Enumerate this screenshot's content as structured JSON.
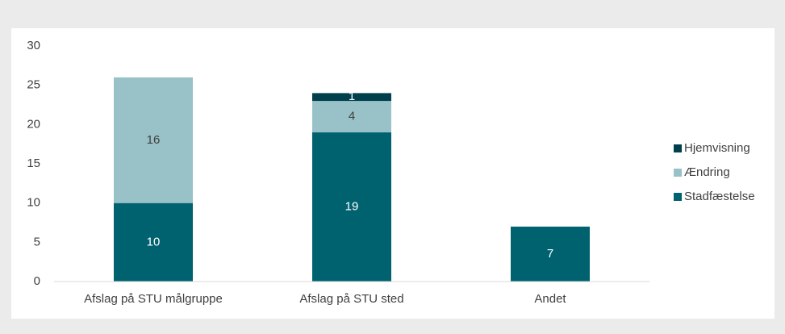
{
  "chart_data": {
    "type": "stacked_bar",
    "categories": [
      "Afslag på STU målgruppe",
      "Afslag på STU sted",
      "Andet"
    ],
    "series": [
      {
        "name": "Stadfæstelse",
        "color": "#00626f",
        "values": [
          10,
          19,
          7
        ]
      },
      {
        "name": "Ændring",
        "color": "#99c1c8",
        "values": [
          16,
          4,
          null
        ]
      },
      {
        "name": "Hjemvisning",
        "color": "#003f4c",
        "values": [
          null,
          1,
          null
        ]
      }
    ],
    "ylim": [
      0,
      30
    ],
    "yticks": [
      0,
      5,
      10,
      15,
      20,
      25,
      30
    ],
    "grid": false,
    "legend": "right"
  }
}
